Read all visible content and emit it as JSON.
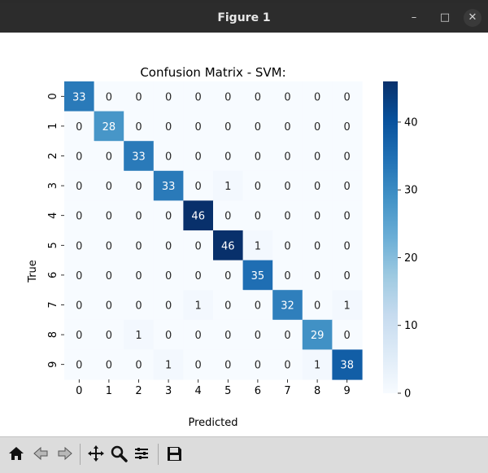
{
  "window": {
    "title": "Figure 1",
    "controls": {
      "minimize": "–",
      "maximize": "□",
      "close": "✕"
    }
  },
  "toolbar": {
    "buttons": [
      {
        "name": "home-icon"
      },
      {
        "name": "back-icon"
      },
      {
        "name": "forward-icon"
      },
      {
        "name": "pan-icon"
      },
      {
        "name": "zoom-icon"
      },
      {
        "name": "configure-subplots-icon"
      },
      {
        "name": "save-icon"
      }
    ]
  },
  "chart_data": {
    "type": "heatmap",
    "title": "Confusion Matrix - SVM:",
    "xlabel": "Predicted",
    "ylabel": "True",
    "x_tick_labels": [
      "0",
      "1",
      "2",
      "3",
      "4",
      "5",
      "6",
      "7",
      "8",
      "9"
    ],
    "y_tick_labels": [
      "0",
      "1",
      "2",
      "3",
      "4",
      "5",
      "6",
      "7",
      "8",
      "9"
    ],
    "matrix": [
      [
        33,
        0,
        0,
        0,
        0,
        0,
        0,
        0,
        0,
        0
      ],
      [
        0,
        28,
        0,
        0,
        0,
        0,
        0,
        0,
        0,
        0
      ],
      [
        0,
        0,
        33,
        0,
        0,
        0,
        0,
        0,
        0,
        0
      ],
      [
        0,
        0,
        0,
        33,
        0,
        1,
        0,
        0,
        0,
        0
      ],
      [
        0,
        0,
        0,
        0,
        46,
        0,
        0,
        0,
        0,
        0
      ],
      [
        0,
        0,
        0,
        0,
        0,
        46,
        1,
        0,
        0,
        0
      ],
      [
        0,
        0,
        0,
        0,
        0,
        0,
        35,
        0,
        0,
        0
      ],
      [
        0,
        0,
        0,
        0,
        1,
        0,
        0,
        32,
        0,
        1
      ],
      [
        0,
        0,
        1,
        0,
        0,
        0,
        0,
        0,
        29,
        0
      ],
      [
        0,
        0,
        0,
        1,
        0,
        0,
        0,
        0,
        1,
        38
      ]
    ],
    "colorscale": "Blues",
    "colorbar": {
      "min": 0,
      "max": 46,
      "ticks": [
        0,
        10,
        20,
        30,
        40
      ]
    },
    "colors": {
      "low": "#f7fbff",
      "high": "#08306b"
    }
  }
}
